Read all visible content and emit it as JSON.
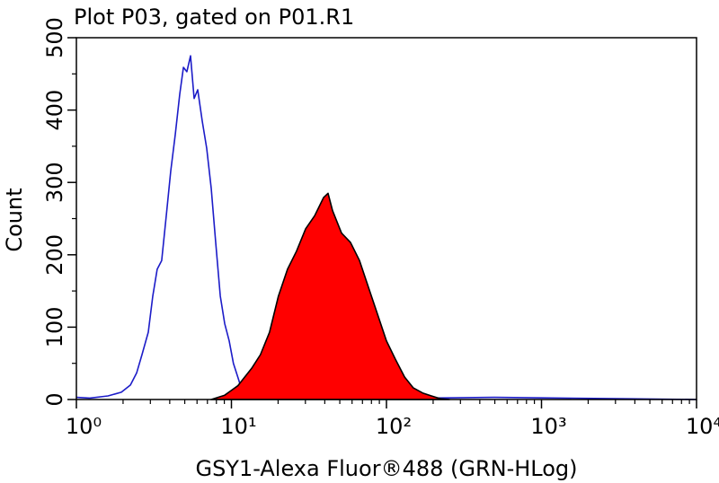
{
  "chart_data": {
    "type": "histogram-overlay",
    "title": "Plot P03, gated on P01.R1",
    "x_label": "GSY1-Alexa Fluor®488 (GRN-HLog)",
    "y_label": "Count",
    "xscale": "log",
    "xlim": [
      1,
      10000
    ],
    "xticks": [
      {
        "value": 1,
        "label": "10⁰"
      },
      {
        "value": 10,
        "label": "10¹"
      },
      {
        "value": 100,
        "label": "10²"
      },
      {
        "value": 1000,
        "label": "10³"
      },
      {
        "value": 10000,
        "label": "10⁴"
      }
    ],
    "ylim": [
      0,
      500
    ],
    "yticks": [
      0,
      100,
      200,
      300,
      400,
      500
    ],
    "series": [
      {
        "color": "#1c1cc8",
        "filled": false,
        "x": [
          1,
          1.22,
          1.6,
          1.95,
          2.23,
          2.45,
          2.65,
          2.91,
          3.11,
          3.32,
          3.55,
          3.8,
          4.06,
          4.34,
          4.64,
          4.9,
          5.16,
          5.45,
          5.75,
          6.06,
          6.48,
          6.93,
          7.41,
          7.92,
          8.47,
          9.05,
          9.67,
          10.3,
          11.0,
          11.8,
          13.5,
          17.6,
          67,
          497,
          3670,
          10000
        ],
        "values": [
          3,
          2,
          5,
          10,
          20,
          37,
          62,
          93,
          143,
          180,
          192,
          254,
          316,
          366,
          422,
          459,
          453,
          475,
          416,
          428,
          385,
          347,
          292,
          217,
          143,
          105,
          81,
          50,
          31,
          10,
          3,
          1,
          1,
          3,
          1,
          0
        ]
      },
      {
        "color": "#ff0000",
        "edgecolor": "#000000",
        "filled": true,
        "x": [
          7.41,
          9.05,
          11.0,
          13.5,
          15.4,
          17.6,
          20.1,
          23.0,
          26.3,
          30.1,
          34.4,
          39.3,
          42.0,
          44.9,
          51.3,
          58.6,
          67.0,
          76.6,
          87.5,
          100,
          114,
          131,
          149,
          171,
          195,
          223,
          255
        ],
        "values": [
          0,
          6,
          19,
          43,
          62,
          93,
          143,
          180,
          205,
          236,
          254,
          279,
          285,
          261,
          230,
          217,
          192,
          155,
          118,
          81,
          56,
          31,
          16,
          9,
          5,
          1,
          0
        ]
      }
    ]
  }
}
